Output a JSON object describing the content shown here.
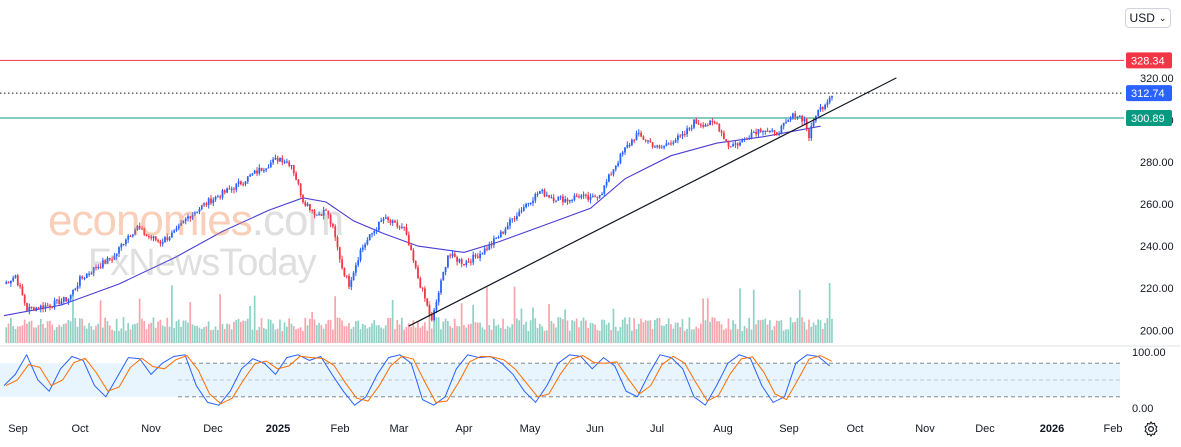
{
  "currency": {
    "label": "USD",
    "caret": "⌄"
  },
  "watermark": {
    "line1_main": "economies",
    "line1_tail": ".com",
    "line2": "FxNewsToday"
  },
  "chart_data": {
    "type": "candlestick",
    "price_axis": {
      "ticks": [
        200,
        220,
        240,
        260,
        280,
        300,
        320
      ],
      "labels": [
        "200.00",
        "220.00",
        "240.00",
        "260.00",
        "280.00",
        "300.00",
        "320.00"
      ],
      "range": [
        193,
        338
      ]
    },
    "osc_axis": {
      "ticks": [
        0,
        100
      ],
      "labels": [
        "0.00",
        "100.00"
      ]
    },
    "x_axis": {
      "labels": [
        "Sep",
        "Oct",
        "Nov",
        "Dec",
        "2025",
        "Feb",
        "Mar",
        "Apr",
        "May",
        "Jun",
        "Jul",
        "Aug",
        "Sep",
        "Oct",
        "Nov",
        "Dec",
        "2026",
        "Feb"
      ],
      "bold": [
        "2025",
        "2026"
      ]
    },
    "levels": [
      {
        "name": "resistance",
        "value": 328.34,
        "label": "328.34",
        "color": "#f23645",
        "style": "solid"
      },
      {
        "name": "last-price",
        "value": 312.74,
        "label": "312.74",
        "color": "#2962ff",
        "style": "dotted"
      },
      {
        "name": "support",
        "value": 300.89,
        "label": "300.89",
        "color": "#089981",
        "style": "solid"
      }
    ],
    "anchors": [
      [
        0,
        222
      ],
      [
        5,
        226
      ],
      [
        10,
        210
      ],
      [
        20,
        212
      ],
      [
        28,
        215
      ],
      [
        33,
        224
      ],
      [
        40,
        230
      ],
      [
        48,
        235
      ],
      [
        53,
        244
      ],
      [
        58,
        249
      ],
      [
        62,
        245
      ],
      [
        68,
        242
      ],
      [
        75,
        247
      ],
      [
        80,
        254
      ],
      [
        90,
        262
      ],
      [
        100,
        268
      ],
      [
        108,
        274
      ],
      [
        115,
        279
      ],
      [
        120,
        282
      ],
      [
        125,
        279
      ],
      [
        130,
        262
      ],
      [
        136,
        255
      ],
      [
        140,
        257
      ],
      [
        143,
        248
      ],
      [
        147,
        230
      ],
      [
        150,
        222
      ],
      [
        155,
        238
      ],
      [
        160,
        246
      ],
      [
        165,
        253
      ],
      [
        170,
        250
      ],
      [
        174,
        248
      ],
      [
        180,
        225
      ],
      [
        183,
        215
      ],
      [
        186,
        204
      ],
      [
        189,
        218
      ],
      [
        193,
        236
      ],
      [
        200,
        232
      ],
      [
        205,
        235
      ],
      [
        211,
        240
      ],
      [
        217,
        247
      ],
      [
        221,
        253
      ],
      [
        227,
        260
      ],
      [
        233,
        266
      ],
      [
        239,
        263
      ],
      [
        245,
        262
      ],
      [
        250,
        264
      ],
      [
        255,
        262
      ],
      [
        260,
        266
      ],
      [
        265,
        277
      ],
      [
        270,
        286
      ],
      [
        275,
        293
      ],
      [
        280,
        290
      ],
      [
        285,
        286
      ],
      [
        290,
        290
      ],
      [
        295,
        292
      ],
      [
        300,
        299
      ],
      [
        305,
        298
      ],
      [
        310,
        298
      ],
      [
        315,
        288
      ],
      [
        320,
        289
      ],
      [
        325,
        294
      ],
      [
        330,
        296
      ],
      [
        335,
        293
      ],
      [
        340,
        298
      ],
      [
        344,
        303
      ],
      [
        348,
        300
      ],
      [
        350,
        292
      ],
      [
        353,
        303
      ],
      [
        357,
        308
      ],
      [
        360,
        312.74
      ]
    ],
    "total_bars": 360,
    "sma": [
      [
        0,
        207
      ],
      [
        25,
        212
      ],
      [
        50,
        222
      ],
      [
        75,
        235
      ],
      [
        95,
        247
      ],
      [
        115,
        257
      ],
      [
        130,
        263
      ],
      [
        140,
        261
      ],
      [
        152,
        252
      ],
      [
        165,
        246
      ],
      [
        180,
        240
      ],
      [
        200,
        237
      ],
      [
        215,
        242
      ],
      [
        235,
        250
      ],
      [
        255,
        258
      ],
      [
        270,
        272
      ],
      [
        290,
        283
      ],
      [
        310,
        289
      ],
      [
        330,
        292
      ],
      [
        355,
        297
      ]
    ],
    "trendline": {
      "from": [
        176,
        202
      ],
      "to": [
        388,
        320
      ]
    },
    "oscillator": {
      "k": [
        40,
        60,
        95,
        50,
        30,
        70,
        92,
        85,
        40,
        20,
        55,
        90,
        88,
        60,
        80,
        92,
        95,
        40,
        10,
        5,
        30,
        70,
        88,
        80,
        60,
        90,
        95,
        85,
        92,
        60,
        30,
        5,
        20,
        60,
        90,
        95,
        80,
        15,
        5,
        20,
        70,
        95,
        90,
        92,
        80,
        60,
        30,
        10,
        40,
        80,
        95,
        92,
        70,
        90,
        75,
        30,
        20,
        60,
        95,
        90,
        70,
        20,
        5,
        40,
        80,
        95,
        88,
        40,
        10,
        20,
        80,
        95,
        92,
        75
      ],
      "overbought": 80,
      "oversold": 20
    }
  }
}
